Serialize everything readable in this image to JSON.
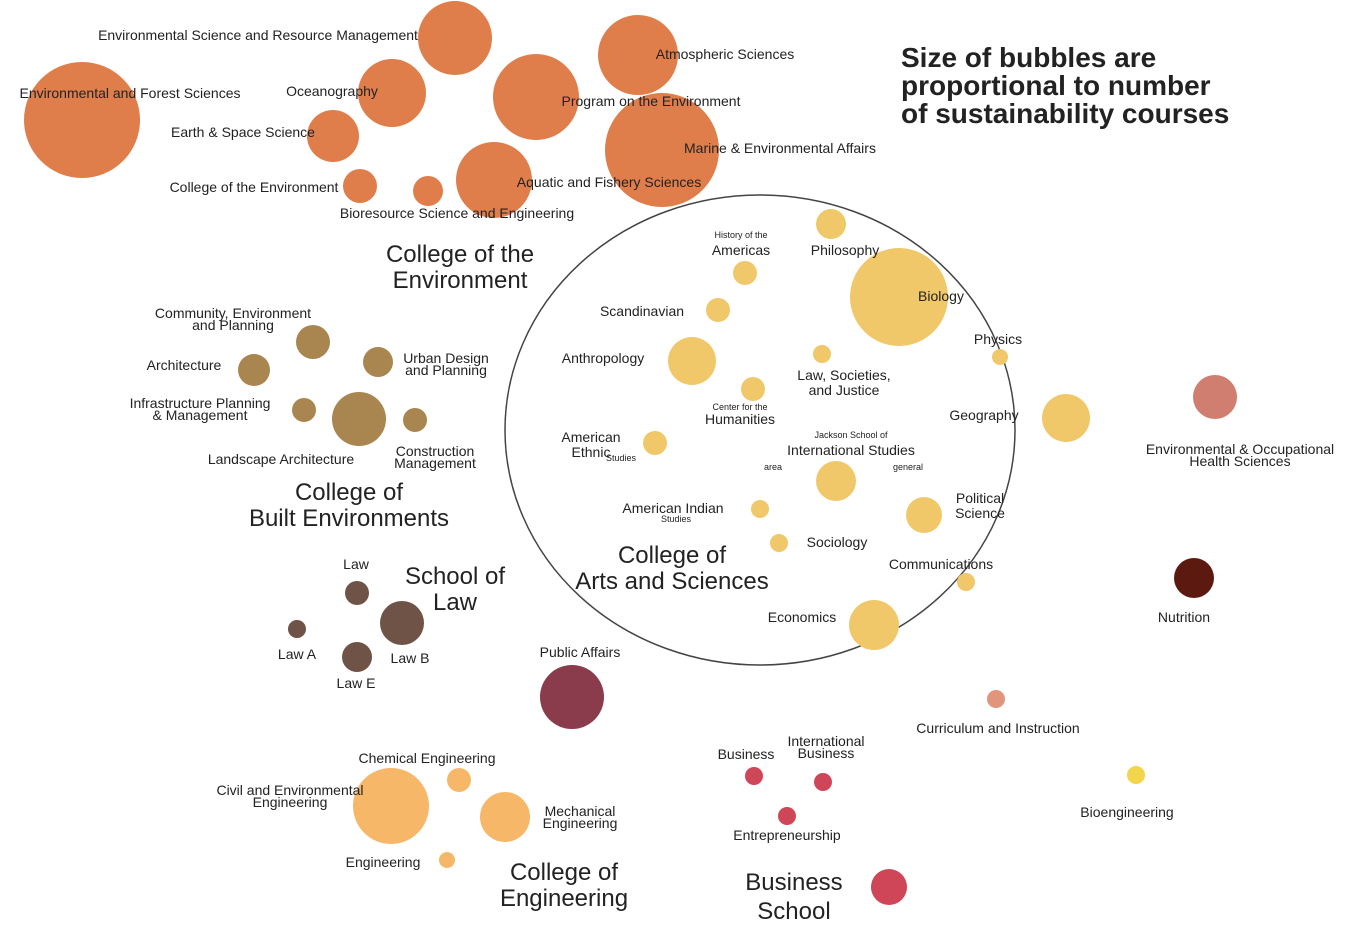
{
  "note": {
    "lines": [
      "Size of bubbles are",
      "proportional to number",
      "of sustainability courses"
    ]
  },
  "groups": {
    "environment": {
      "lines": [
        "College of the",
        "Environment"
      ]
    },
    "built": {
      "lines": [
        "College of",
        "Built Environments"
      ]
    },
    "law": {
      "lines": [
        "School of",
        "Law"
      ]
    },
    "arts": {
      "lines": [
        "College of",
        "Arts and Sciences"
      ]
    },
    "engineering": {
      "lines": [
        "College of",
        "Engineering"
      ]
    },
    "business": {
      "lines": [
        "Business",
        "School"
      ]
    }
  },
  "colors": {
    "environment": "#e07e4b",
    "built": "#a98550",
    "law": "#6e5346",
    "arts": "#f0c86a",
    "engineering": "#f6b868",
    "public_affairs": "#8a3b4c",
    "business": "#cf4658",
    "env_occ_health": "#cf7e70",
    "nutrition": "#5c190f",
    "curriculum": "#e0967a",
    "bioengineering": "#f2d54a"
  },
  "bubbles": [
    {
      "id": "env-sci-resource-mgmt",
      "group": "environment",
      "label": [
        "Environmental Science and Resource Management"
      ]
    },
    {
      "id": "env-forest-sci",
      "group": "environment",
      "label": [
        "Environmental and Forest Sciences"
      ]
    },
    {
      "id": "oceanography",
      "group": "environment",
      "label": [
        "Oceanography"
      ]
    },
    {
      "id": "earth-space-sci",
      "group": "environment",
      "label": [
        "Earth & Space Science"
      ]
    },
    {
      "id": "college-of-the-environment",
      "group": "environment",
      "label": [
        "College of the Environment"
      ]
    },
    {
      "id": "bioresource-sci-eng",
      "group": "environment",
      "label": [
        "Bioresource Science and Engineering"
      ]
    },
    {
      "id": "atmospheric-sciences",
      "group": "environment",
      "label": [
        "Atmospheric Sciences"
      ]
    },
    {
      "id": "program-on-environment",
      "group": "environment",
      "label": [
        "Program on the Environment"
      ]
    },
    {
      "id": "marine-env-affairs",
      "group": "environment",
      "label": [
        "Marine & Environmental Affairs"
      ]
    },
    {
      "id": "aquatic-fishery-sci",
      "group": "environment",
      "label": [
        "Aquatic and Fishery Sciences"
      ]
    },
    {
      "id": "community-env-planning",
      "group": "built",
      "label": [
        "Community, Environment",
        "and Planning"
      ]
    },
    {
      "id": "architecture",
      "group": "built",
      "label": [
        "Architecture"
      ]
    },
    {
      "id": "urban-design-planning",
      "group": "built",
      "label": [
        "Urban Design",
        "and Planning"
      ]
    },
    {
      "id": "infrastructure-planning",
      "group": "built",
      "label": [
        "Infrastructure Planning",
        "& Management"
      ]
    },
    {
      "id": "built-large",
      "group": "built",
      "label": []
    },
    {
      "id": "construction-mgmt",
      "group": "built",
      "label": [
        "Construction",
        "Management"
      ]
    },
    {
      "id": "landscape-architecture",
      "group": "built",
      "label": [
        "Landscape Architecture"
      ]
    },
    {
      "id": "law",
      "group": "law",
      "label": [
        "Law"
      ]
    },
    {
      "id": "law-large",
      "group": "law",
      "label": []
    },
    {
      "id": "law-a",
      "group": "law",
      "label": [
        "Law A"
      ]
    },
    {
      "id": "law-b",
      "group": "law",
      "label": [
        "Law B"
      ]
    },
    {
      "id": "law-e",
      "group": "law",
      "label": [
        "Law E"
      ]
    },
    {
      "id": "philosophy",
      "group": "arts",
      "label": [
        "Philosophy"
      ]
    },
    {
      "id": "history-americas",
      "group": "arts",
      "label": [
        "Americas"
      ],
      "sublabel": "History of the"
    },
    {
      "id": "biology",
      "group": "arts",
      "label": [
        "Biology"
      ]
    },
    {
      "id": "scandinavian",
      "group": "arts",
      "label": [
        "Scandinavian"
      ]
    },
    {
      "id": "physics",
      "group": "arts",
      "label": [
        "Physics"
      ]
    },
    {
      "id": "anthropology",
      "group": "arts",
      "label": [
        "Anthropology"
      ]
    },
    {
      "id": "law-societies-justice",
      "group": "arts",
      "label": [
        "Law, Societies,",
        "and Justice"
      ]
    },
    {
      "id": "humanities",
      "group": "arts",
      "label": [
        "Humanities"
      ],
      "sublabel": "Center for the"
    },
    {
      "id": "geography",
      "group": "arts",
      "label": [
        "Geography"
      ]
    },
    {
      "id": "american-ethnic",
      "group": "arts",
      "label": [
        "American",
        "Ethnic"
      ],
      "sublabel": "Studies"
    },
    {
      "id": "international-studies",
      "group": "arts",
      "label": [
        "International Studies"
      ],
      "sublabel": "Jackson School of",
      "sub_left": "area",
      "sub_right": "general"
    },
    {
      "id": "political-science",
      "group": "arts",
      "label": [
        "Political",
        "Science"
      ]
    },
    {
      "id": "american-indian",
      "group": "arts",
      "label": [
        "American Indian"
      ],
      "sublabel": "Studies"
    },
    {
      "id": "sociology",
      "group": "arts",
      "label": [
        "Sociology"
      ]
    },
    {
      "id": "communications",
      "group": "arts",
      "label": [
        "Communications"
      ]
    },
    {
      "id": "economics",
      "group": "arts",
      "label": [
        "Economics"
      ]
    },
    {
      "id": "env-occ-health",
      "group": "env_occ_health",
      "label": [
        "Environmental & Occupational",
        "Health Sciences"
      ]
    },
    {
      "id": "nutrition",
      "group": "nutrition",
      "label": [
        "Nutrition"
      ]
    },
    {
      "id": "public-affairs",
      "group": "public_affairs",
      "label": [
        "Public Affairs"
      ]
    },
    {
      "id": "curriculum-instruction",
      "group": "curriculum",
      "label": [
        "Curriculum and Instruction"
      ]
    },
    {
      "id": "bioengineering",
      "group": "bioengineering",
      "label": [
        "Bioengineering"
      ]
    },
    {
      "id": "chemical-engineering",
      "group": "engineering",
      "label": [
        "Chemical Engineering"
      ]
    },
    {
      "id": "civil-env-engineering",
      "group": "engineering",
      "label": [
        "Civil and Environmental",
        "Engineering"
      ]
    },
    {
      "id": "mechanical-engineering",
      "group": "engineering",
      "label": [
        "Mechanical",
        "Engineering"
      ]
    },
    {
      "id": "engineering",
      "group": "engineering",
      "label": [
        "Engineering"
      ]
    },
    {
      "id": "business",
      "group": "business",
      "label": [
        "Business"
      ]
    },
    {
      "id": "international-business",
      "group": "business",
      "label": [
        "International",
        "Business"
      ]
    },
    {
      "id": "entrepreneurship",
      "group": "business",
      "label": [
        "Entrepreneurship"
      ]
    },
    {
      "id": "business-school",
      "group": "business",
      "label": []
    }
  ]
}
